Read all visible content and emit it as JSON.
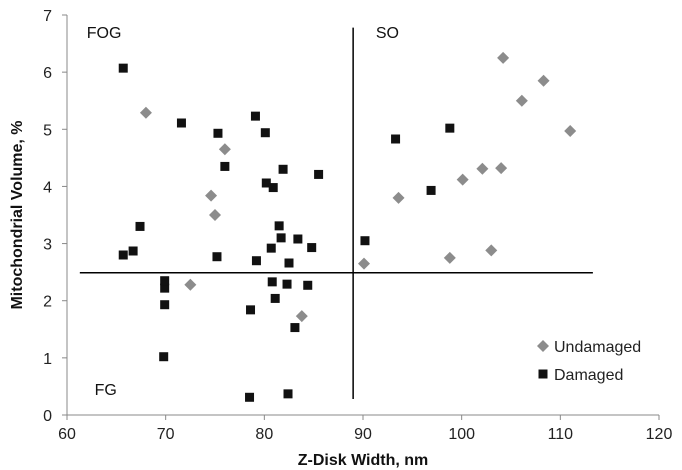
{
  "chart_data": {
    "type": "scatter",
    "xlabel": "Z-Disk Width, nm",
    "ylabel": "Mitochondrial Volume, %",
    "xlim": [
      60,
      120
    ],
    "ylim": [
      0,
      7
    ],
    "xticks": [
      60,
      70,
      80,
      90,
      100,
      110,
      120
    ],
    "yticks": [
      0,
      1,
      2,
      3,
      4,
      5,
      6,
      7
    ],
    "grid": false,
    "legend_position": "bottom-right",
    "quadrant_labels": [
      {
        "id": "fog",
        "text": "FOG",
        "x": 62,
        "y": 6.6
      },
      {
        "id": "so",
        "text": "SO",
        "x": 91.3,
        "y": 6.6
      },
      {
        "id": "fg",
        "text": "FG",
        "x": 62.8,
        "y": 0.35
      }
    ],
    "divider_lines": [
      {
        "id": "vertical",
        "x1": 89,
        "y1": 0.28,
        "x2": 89,
        "y2": 6.78
      },
      {
        "id": "horizontal",
        "x1": 61.3,
        "y1": 2.49,
        "x2": 113.3,
        "y2": 2.49
      }
    ],
    "series": [
      {
        "name": "Undamaged",
        "marker": "diamond",
        "color": "#8c8c8c",
        "points": [
          [
            68,
            5.29
          ],
          [
            72.5,
            2.28
          ],
          [
            74.6,
            3.84
          ],
          [
            75,
            3.5
          ],
          [
            76,
            4.65
          ],
          [
            83.8,
            1.73
          ],
          [
            90.1,
            2.65
          ],
          [
            93.6,
            3.8
          ],
          [
            98.8,
            2.75
          ],
          [
            100.1,
            4.12
          ],
          [
            102.1,
            4.31
          ],
          [
            103,
            2.88
          ],
          [
            104,
            4.32
          ],
          [
            104.2,
            6.25
          ],
          [
            106.1,
            5.5
          ],
          [
            108.3,
            5.85
          ],
          [
            111,
            4.97
          ]
        ]
      },
      {
        "name": "Damaged",
        "marker": "square",
        "color": "#111111",
        "points": [
          [
            65.7,
            6.07
          ],
          [
            65.7,
            2.8
          ],
          [
            66.7,
            2.87
          ],
          [
            67.4,
            3.3
          ],
          [
            69.8,
            1.02
          ],
          [
            69.9,
            1.93
          ],
          [
            69.9,
            2.22
          ],
          [
            69.9,
            2.35
          ],
          [
            71.6,
            5.11
          ],
          [
            75.2,
            2.77
          ],
          [
            75.3,
            4.93
          ],
          [
            76,
            4.35
          ],
          [
            78.5,
            0.31
          ],
          [
            78.6,
            1.84
          ],
          [
            79.1,
            5.23
          ],
          [
            79.2,
            2.7
          ],
          [
            80.1,
            4.94
          ],
          [
            80.2,
            4.06
          ],
          [
            80.7,
            2.92
          ],
          [
            80.8,
            2.33
          ],
          [
            80.9,
            3.98
          ],
          [
            81.1,
            2.04
          ],
          [
            81.5,
            3.31
          ],
          [
            81.7,
            3.1
          ],
          [
            81.9,
            4.3
          ],
          [
            82.3,
            2.29
          ],
          [
            82.4,
            0.37
          ],
          [
            82.5,
            2.66
          ],
          [
            83.1,
            1.53
          ],
          [
            83.4,
            3.08
          ],
          [
            84.4,
            2.27
          ],
          [
            84.8,
            2.93
          ],
          [
            85.5,
            4.21
          ],
          [
            90.2,
            3.05
          ],
          [
            93.3,
            4.83
          ],
          [
            96.9,
            3.93
          ],
          [
            98.8,
            5.02
          ]
        ]
      }
    ]
  }
}
